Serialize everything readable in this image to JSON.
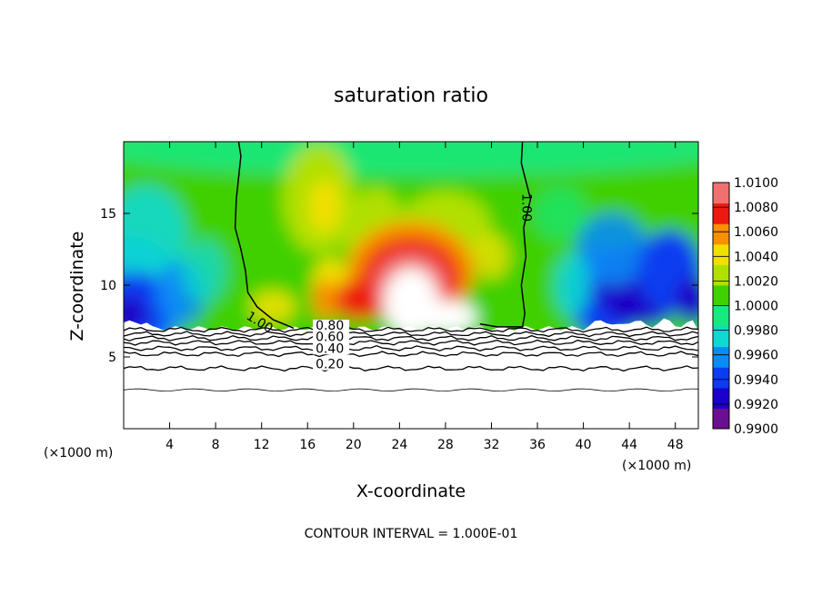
{
  "chart_data": {
    "type": "heatmap",
    "title": "saturation ratio",
    "xlabel": "X-coordinate",
    "ylabel": "Z-coordinate",
    "x_unit_left": "(×1000 m)",
    "x_unit_right": "(×1000 m)",
    "footer": "CONTOUR INTERVAL = 1.000E-01",
    "xlim": [
      0,
      50
    ],
    "ylim": [
      0,
      20
    ],
    "x_ticks": [
      4,
      8,
      12,
      16,
      20,
      24,
      28,
      32,
      36,
      40,
      44,
      48
    ],
    "y_ticks": [
      5,
      10,
      15
    ],
    "grid": false,
    "colorbar": {
      "levels": [
        "0.9900",
        "0.9920",
        "0.9940",
        "0.9960",
        "0.9980",
        "1.0000",
        "1.0020",
        "1.0040",
        "1.0060",
        "1.0080",
        "1.0100"
      ],
      "colors": [
        "#6a0f8f",
        "#1a00c8",
        "#0a3cf0",
        "#0a8cf5",
        "#10d8d0",
        "#18e880",
        "#40d000",
        "#b0e000",
        "#f0e000",
        "#f89000",
        "#ee1a10",
        "#f07070"
      ]
    },
    "contour_labels": [
      {
        "text": "1.00",
        "x": 10.6,
        "y": 7.7
      },
      {
        "text": "1.00",
        "x": 34.7,
        "y": 16.4
      },
      {
        "text": "0.80",
        "x": 16.7,
        "y": 6.9
      },
      {
        "text": "0.60",
        "x": 16.7,
        "y": 6.1
      },
      {
        "text": "0.40",
        "x": 16.7,
        "y": 5.3
      },
      {
        "text": "0.20",
        "x": 16.7,
        "y": 4.2
      }
    ],
    "cloud_base_z": 7.0,
    "contour_levels_below_base": [
      0.2,
      0.4,
      0.6,
      0.8
    ]
  }
}
